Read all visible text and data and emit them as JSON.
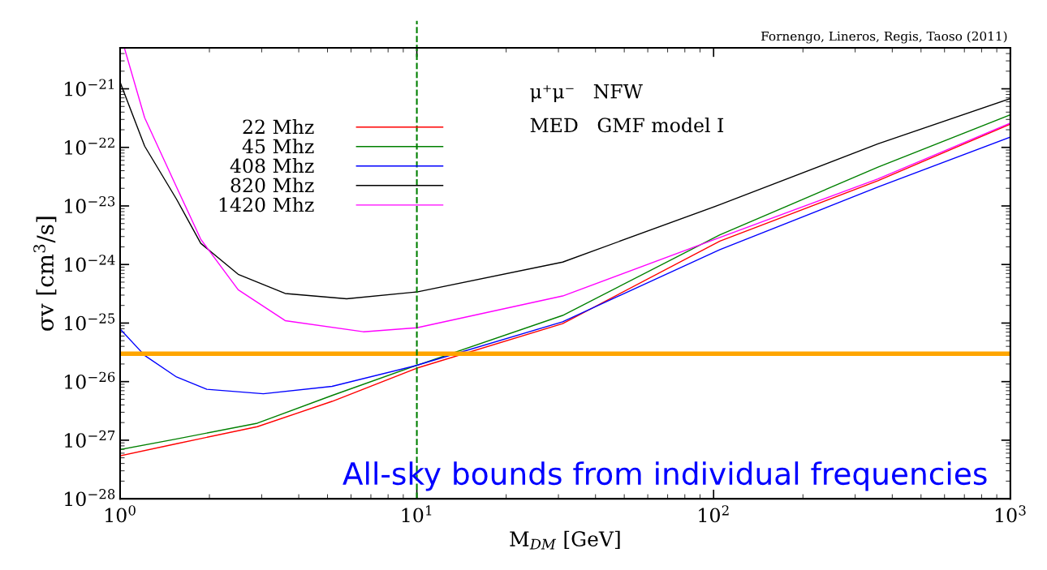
{
  "chart_data": {
    "type": "line",
    "xlabel": "M$_{DM}$ [GeV]",
    "ylabel": "σv [cm$^{3}$/s]",
    "log": "xy",
    "grid": false,
    "legend": "top left",
    "line_style": "solid",
    "marker": "none",
    "xlim": [
      1,
      1000
    ],
    "ylim": [
      1e-28,
      5e-21
    ],
    "xticks": [
      {
        "value": 1,
        "label": "10$^{0}$"
      },
      {
        "value": 10,
        "label": "10$^{1}$"
      },
      {
        "value": 100,
        "label": "10$^{2}$"
      },
      {
        "value": 1000,
        "label": "10$^{3}$"
      }
    ],
    "yticks": [
      {
        "value": 1e-28,
        "label": "10$^{−28}$"
      },
      {
        "value": 1e-27,
        "label": "10$^{−27}$"
      },
      {
        "value": 1e-26,
        "label": "10$^{−26}$"
      },
      {
        "value": 1e-25,
        "label": "10$^{−25}$"
      },
      {
        "value": 1e-24,
        "label": "10$^{−24}$"
      },
      {
        "value": 1e-23,
        "label": "10$^{−23}$"
      },
      {
        "value": 1e-22,
        "label": "10$^{−22}$"
      },
      {
        "value": 1e-21,
        "label": "10$^{−21}$"
      }
    ],
    "series": [
      {
        "name": "22 Mhz",
        "color": "#ff0000",
        "x": [
          1,
          1.55,
          2.9,
          5.18,
          10,
          31,
          105,
          358,
          1000
        ],
        "values": [
          5.4e-28,
          8.7e-28,
          1.7e-27,
          4.6e-27,
          1.7e-26,
          9.8e-26,
          2.5e-24,
          2.7e-23,
          2.5e-22
        ]
      },
      {
        "name": "45 Mhz",
        "color": "#008000",
        "x": [
          1,
          1.55,
          2.9,
          5.18,
          10,
          31,
          105,
          358,
          1000
        ],
        "values": [
          6.9e-28,
          1.05e-27,
          1.95e-27,
          5.8e-27,
          1.9e-26,
          1.35e-25,
          3.2e-24,
          4.6e-23,
          3.6e-22
        ]
      },
      {
        "name": "408 Mhz",
        "color": "#0000ff",
        "x": [
          1,
          1.21,
          1.55,
          1.96,
          3.04,
          5.18,
          10,
          31,
          105,
          358,
          1000
        ],
        "values": [
          7.9e-26,
          2.8e-26,
          1.2e-26,
          7.4e-27,
          6.2e-27,
          8.3e-27,
          1.9e-26,
          1.05e-25,
          1.8e-24,
          2.1e-23,
          1.5e-22
        ]
      },
      {
        "name": "820 Mhz",
        "color": "#000000",
        "x": [
          1,
          1.21,
          1.55,
          1.87,
          2.5,
          3.6,
          5.8,
          10,
          31,
          105,
          358,
          1000
        ],
        "values": [
          1.3e-21,
          1.05e-22,
          1.3e-23,
          2.3e-24,
          6.8e-25,
          3.2e-25,
          2.6e-25,
          3.4e-25,
          1.1e-24,
          1.05e-23,
          1.15e-22,
          6.8e-22
        ]
      },
      {
        "name": "1420 Mhz",
        "color": "#ff00ff",
        "x": [
          1.035,
          1.21,
          1.55,
          1.87,
          2.5,
          3.6,
          6.6,
          10,
          31,
          105,
          358,
          1000
        ],
        "values": [
          4.9e-21,
          3.2e-22,
          2.1e-23,
          2.7e-24,
          3.7e-25,
          1.1e-25,
          7.1e-26,
          8.3e-26,
          2.9e-25,
          2.9e-24,
          2.9e-23,
          2.6e-22
        ]
      }
    ],
    "ref_lines": [
      {
        "axis": "y",
        "value": 3e-26,
        "color": "#ffa500",
        "line_style": "solid"
      },
      {
        "axis": "x",
        "value": 10,
        "color": "#008000",
        "line_style": "dashed"
      }
    ],
    "annotations": [
      "Fornengo, Lineros, Regis, Taoso (2011)",
      "μ⁺μ⁻   NFW",
      "MED   GMF model I",
      "All-sky bounds from individual frequencies"
    ]
  }
}
